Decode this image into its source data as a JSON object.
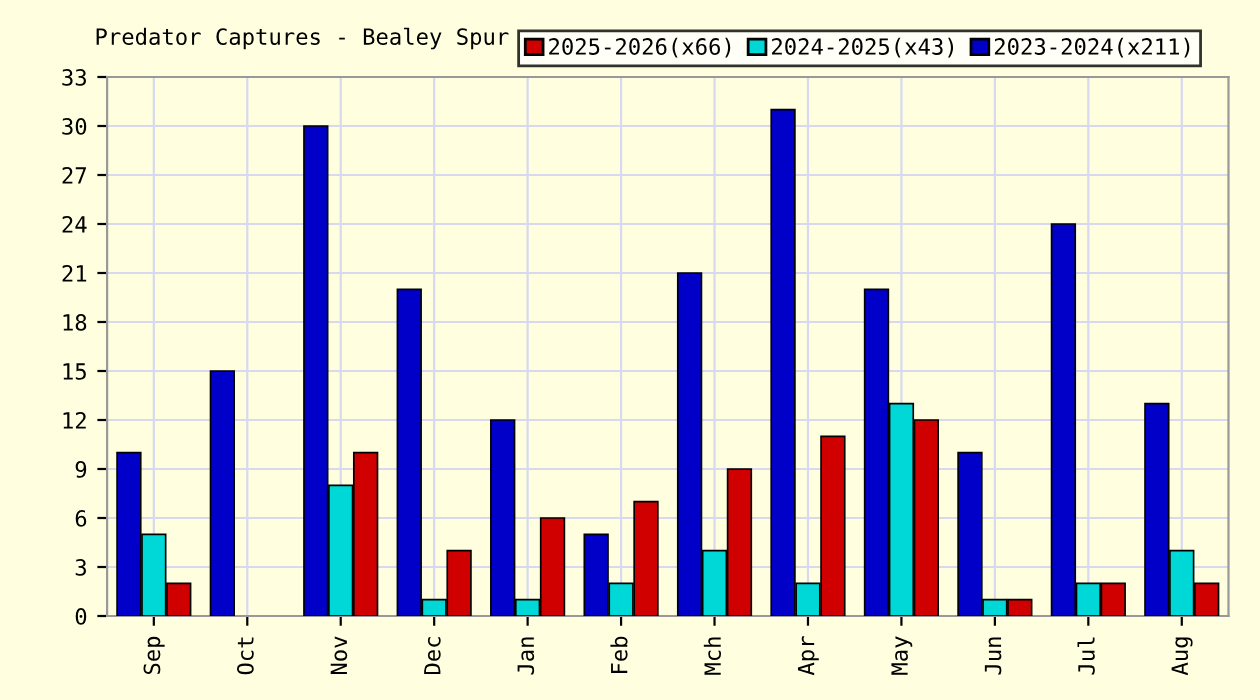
{
  "chart_data": {
    "type": "bar",
    "title": "Predator Captures - Bealey Spur",
    "categories": [
      "Sep",
      "Oct",
      "Nov",
      "Dec",
      "Jan",
      "Feb",
      "Mch",
      "Apr",
      "May",
      "Jun",
      "Jul",
      "Aug"
    ],
    "series": [
      {
        "name": "2023-2024(x211)",
        "color": "#0000c8",
        "values": [
          10,
          15,
          30,
          20,
          12,
          5,
          21,
          31,
          20,
          10,
          24,
          13
        ]
      },
      {
        "name": "2024-2025(x43)",
        "color": "#00d8d8",
        "values": [
          5,
          0,
          8,
          1,
          1,
          2,
          4,
          2,
          13,
          1,
          2,
          4
        ]
      },
      {
        "name": "2025-2026(x66)",
        "color": "#d00000",
        "values": [
          2,
          null,
          10,
          4,
          6,
          7,
          9,
          11,
          12,
          1,
          2,
          2
        ]
      }
    ],
    "ylim": [
      0,
      33
    ],
    "yticks": [
      0,
      3,
      6,
      9,
      12,
      15,
      18,
      21,
      24,
      27,
      30,
      33
    ],
    "grid": true,
    "legend": "top right"
  }
}
